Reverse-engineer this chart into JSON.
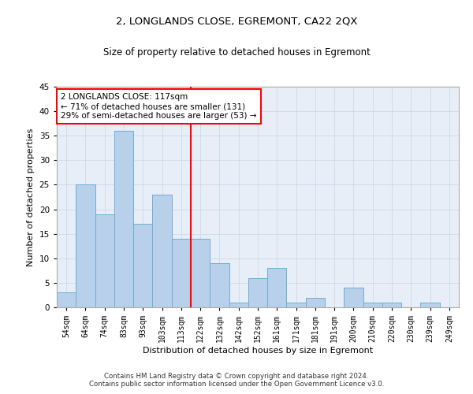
{
  "title": "2, LONGLANDS CLOSE, EGREMONT, CA22 2QX",
  "subtitle": "Size of property relative to detached houses in Egremont",
  "xlabel": "Distribution of detached houses by size in Egremont",
  "ylabel": "Number of detached properties",
  "categories": [
    "54sqm",
    "64sqm",
    "74sqm",
    "83sqm",
    "93sqm",
    "103sqm",
    "113sqm",
    "122sqm",
    "132sqm",
    "142sqm",
    "152sqm",
    "161sqm",
    "171sqm",
    "181sqm",
    "191sqm",
    "200sqm",
    "210sqm",
    "220sqm",
    "230sqm",
    "239sqm",
    "249sqm"
  ],
  "values": [
    3,
    25,
    19,
    36,
    17,
    23,
    14,
    14,
    9,
    1,
    6,
    8,
    1,
    2,
    0,
    4,
    1,
    1,
    0,
    1,
    0
  ],
  "bar_color": "#b8d0ea",
  "bar_edge_color": "#6aaed6",
  "highlight_line_color": "red",
  "annotation_line1": "2 LONGLANDS CLOSE: 117sqm",
  "annotation_line2": "← 71% of detached houses are smaller (131)",
  "annotation_line3": "29% of semi-detached houses are larger (53) →",
  "annotation_box_color": "white",
  "annotation_box_edge": "red",
  "ylim": [
    0,
    45
  ],
  "yticks": [
    0,
    5,
    10,
    15,
    20,
    25,
    30,
    35,
    40,
    45
  ],
  "grid_color": "#d0d8e8",
  "background_color": "#e8eef8",
  "footer_line1": "Contains HM Land Registry data © Crown copyright and database right 2024.",
  "footer_line2": "Contains public sector information licensed under the Open Government Licence v3.0."
}
